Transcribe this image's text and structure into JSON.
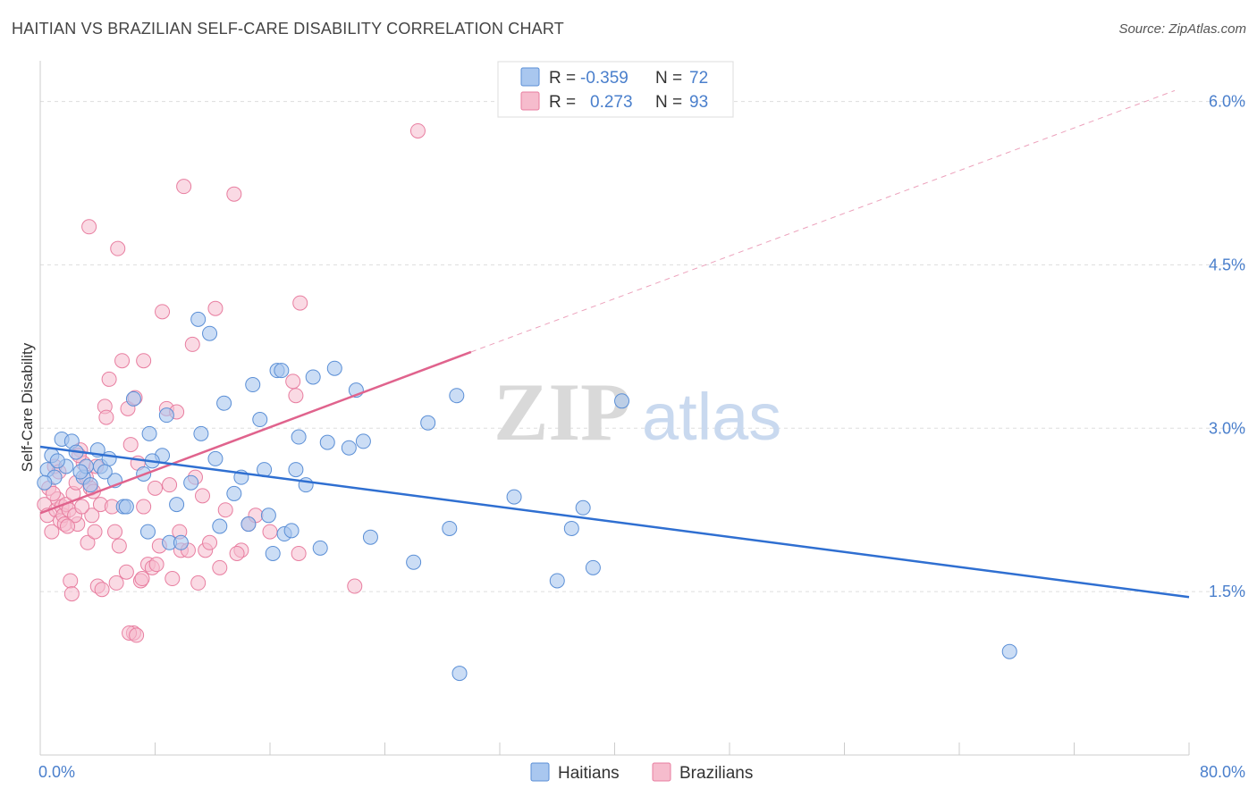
{
  "title": "HAITIAN VS BRAZILIAN SELF-CARE DISABILITY CORRELATION CHART",
  "source": "Source: ZipAtlas.com",
  "watermark": {
    "zip": "ZIP",
    "atlas": "atlas"
  },
  "colors": {
    "haitians_fill": "#a9c7ef",
    "haitians_stroke": "#5b8fd6",
    "haitians_line": "#2f6fd1",
    "brazilians_fill": "#f6bccd",
    "brazilians_stroke": "#e87ea0",
    "brazilians_line": "#e0638d",
    "tick_label": "#4a7fcc",
    "grid": "#dddddd"
  },
  "legend": {
    "rows": [
      {
        "r_label": "R =",
        "r_value": "-0.359",
        "n_label": "N =",
        "n_value": "72"
      },
      {
        "r_label": "R =",
        "r_value": "0.273",
        "n_label": "N =",
        "n_value": "93"
      }
    ]
  },
  "chart_data": {
    "type": "scatter",
    "title": "HAITIAN VS BRAZILIAN SELF-CARE DISABILITY CORRELATION CHART",
    "xlabel": "",
    "ylabel": "Self-Care Disability",
    "xlim": [
      0,
      80
    ],
    "ylim": [
      0,
      6.3
    ],
    "x_tick_labels": [
      "0.0%",
      "80.0%"
    ],
    "y_ticks": [
      1.5,
      3.0,
      4.5,
      6.0
    ],
    "y_tick_labels": [
      "1.5%",
      "3.0%",
      "4.5%",
      "6.0%"
    ],
    "grid": "horizontal dashed",
    "legend_position": "top-center and bottom",
    "series": [
      {
        "name": "Haitians",
        "trend": {
          "x": [
            0,
            80
          ],
          "y": [
            2.83,
            1.45
          ],
          "dashed_extension": false
        },
        "points": [
          [
            0.5,
            2.62
          ],
          [
            0.8,
            2.75
          ],
          [
            1.0,
            2.55
          ],
          [
            1.5,
            2.9
          ],
          [
            1.8,
            2.65
          ],
          [
            2.2,
            2.88
          ],
          [
            2.5,
            2.78
          ],
          [
            3.0,
            2.55
          ],
          [
            3.2,
            2.65
          ],
          [
            3.5,
            2.48
          ],
          [
            4.0,
            2.8
          ],
          [
            4.2,
            2.65
          ],
          [
            4.8,
            2.72
          ],
          [
            5.2,
            2.52
          ],
          [
            5.8,
            2.28
          ],
          [
            6.5,
            3.27
          ],
          [
            7.2,
            2.58
          ],
          [
            7.5,
            2.05
          ],
          [
            7.6,
            2.95
          ],
          [
            8.5,
            2.75
          ],
          [
            8.8,
            3.12
          ],
          [
            9.0,
            1.95
          ],
          [
            9.5,
            2.3
          ],
          [
            10.5,
            2.5
          ],
          [
            11.0,
            4.0
          ],
          [
            11.2,
            2.95
          ],
          [
            11.8,
            3.87
          ],
          [
            12.2,
            2.72
          ],
          [
            12.5,
            2.1
          ],
          [
            12.8,
            3.23
          ],
          [
            13.5,
            2.4
          ],
          [
            14.0,
            2.55
          ],
          [
            14.5,
            2.12
          ],
          [
            14.8,
            3.4
          ],
          [
            15.3,
            3.08
          ],
          [
            15.6,
            2.62
          ],
          [
            15.9,
            2.2
          ],
          [
            16.2,
            1.85
          ],
          [
            16.5,
            3.53
          ],
          [
            17.0,
            2.03
          ],
          [
            17.5,
            2.06
          ],
          [
            17.8,
            2.62
          ],
          [
            18.0,
            2.92
          ],
          [
            18.5,
            2.48
          ],
          [
            19.0,
            3.47
          ],
          [
            19.5,
            1.9
          ],
          [
            20.0,
            2.87
          ],
          [
            20.5,
            3.55
          ],
          [
            21.5,
            2.82
          ],
          [
            22.0,
            3.35
          ],
          [
            22.5,
            2.88
          ],
          [
            23.0,
            2.0
          ],
          [
            26.0,
            1.77
          ],
          [
            27.0,
            3.05
          ],
          [
            28.5,
            2.08
          ],
          [
            29.0,
            3.3
          ],
          [
            29.2,
            0.75
          ],
          [
            33.0,
            2.37
          ],
          [
            36.0,
            1.6
          ],
          [
            37.0,
            2.08
          ],
          [
            37.8,
            2.27
          ],
          [
            38.5,
            1.72
          ],
          [
            40.5,
            3.25
          ],
          [
            67.5,
            0.95
          ],
          [
            0.3,
            2.5
          ],
          [
            1.2,
            2.7
          ],
          [
            2.8,
            2.6
          ],
          [
            4.5,
            2.6
          ],
          [
            6.0,
            2.28
          ],
          [
            7.8,
            2.7
          ],
          [
            9.8,
            1.95
          ],
          [
            16.8,
            3.53
          ]
        ]
      },
      {
        "name": "Brazilians",
        "trend": {
          "x": [
            0,
            30
          ],
          "y": [
            2.22,
            3.7
          ],
          "dashed_extension": {
            "x": [
              30,
              79
            ],
            "y": [
              3.7,
              6.1
            ]
          }
        },
        "points": [
          [
            0.3,
            2.3
          ],
          [
            0.5,
            2.2
          ],
          [
            0.6,
            2.45
          ],
          [
            0.8,
            2.05
          ],
          [
            1.0,
            2.65
          ],
          [
            1.1,
            2.25
          ],
          [
            1.2,
            2.35
          ],
          [
            1.4,
            2.15
          ],
          [
            1.5,
            2.28
          ],
          [
            1.6,
            2.2
          ],
          [
            1.7,
            2.12
          ],
          [
            1.8,
            2.3
          ],
          [
            2.0,
            2.25
          ],
          [
            2.1,
            1.6
          ],
          [
            2.2,
            1.48
          ],
          [
            2.3,
            2.4
          ],
          [
            2.5,
            2.5
          ],
          [
            2.6,
            2.12
          ],
          [
            2.8,
            2.8
          ],
          [
            3.0,
            2.68
          ],
          [
            3.2,
            2.55
          ],
          [
            3.3,
            1.95
          ],
          [
            3.5,
            2.45
          ],
          [
            3.6,
            2.2
          ],
          [
            3.8,
            2.05
          ],
          [
            4.0,
            1.55
          ],
          [
            4.2,
            2.3
          ],
          [
            4.5,
            3.2
          ],
          [
            4.6,
            3.1
          ],
          [
            5.0,
            2.28
          ],
          [
            5.3,
            1.58
          ],
          [
            5.5,
            1.92
          ],
          [
            5.7,
            3.62
          ],
          [
            6.0,
            1.68
          ],
          [
            6.1,
            3.18
          ],
          [
            6.3,
            2.85
          ],
          [
            6.5,
            1.12
          ],
          [
            6.6,
            3.28
          ],
          [
            6.8,
            2.68
          ],
          [
            7.0,
            1.6
          ],
          [
            7.2,
            2.28
          ],
          [
            7.5,
            1.75
          ],
          [
            7.8,
            1.72
          ],
          [
            8.0,
            2.45
          ],
          [
            8.3,
            1.92
          ],
          [
            8.5,
            4.07
          ],
          [
            8.8,
            3.18
          ],
          [
            9.0,
            2.48
          ],
          [
            9.5,
            3.15
          ],
          [
            9.8,
            1.88
          ],
          [
            10.0,
            5.22
          ],
          [
            10.3,
            1.88
          ],
          [
            10.6,
            3.77
          ],
          [
            11.0,
            1.58
          ],
          [
            11.5,
            1.88
          ],
          [
            11.8,
            1.95
          ],
          [
            12.2,
            4.1
          ],
          [
            12.5,
            1.72
          ],
          [
            14.0,
            1.88
          ],
          [
            14.5,
            2.12
          ],
          [
            17.6,
            3.43
          ],
          [
            17.8,
            3.3
          ],
          [
            18.0,
            1.85
          ],
          [
            18.1,
            4.15
          ],
          [
            21.9,
            1.55
          ],
          [
            26.3,
            5.73
          ],
          [
            3.4,
            4.85
          ],
          [
            5.4,
            4.65
          ],
          [
            7.2,
            3.62
          ],
          [
            4.8,
            3.45
          ],
          [
            6.2,
            1.12
          ],
          [
            9.2,
            1.62
          ],
          [
            13.5,
            5.15
          ],
          [
            2.4,
            2.2
          ],
          [
            2.9,
            2.28
          ],
          [
            3.7,
            2.42
          ],
          [
            1.3,
            2.6
          ],
          [
            0.9,
            2.4
          ],
          [
            1.9,
            2.1
          ],
          [
            4.3,
            1.52
          ],
          [
            5.2,
            2.05
          ],
          [
            6.7,
            1.1
          ],
          [
            7.1,
            1.62
          ],
          [
            8.1,
            1.75
          ],
          [
            9.7,
            2.05
          ],
          [
            10.8,
            2.55
          ],
          [
            11.3,
            2.38
          ],
          [
            12.9,
            2.25
          ],
          [
            13.7,
            1.85
          ],
          [
            15.0,
            2.2
          ],
          [
            16.0,
            2.05
          ],
          [
            2.7,
            2.75
          ],
          [
            3.9,
            2.65
          ]
        ]
      }
    ]
  },
  "bottom_legend": [
    {
      "label": "Haitians"
    },
    {
      "label": "Brazilians"
    }
  ]
}
